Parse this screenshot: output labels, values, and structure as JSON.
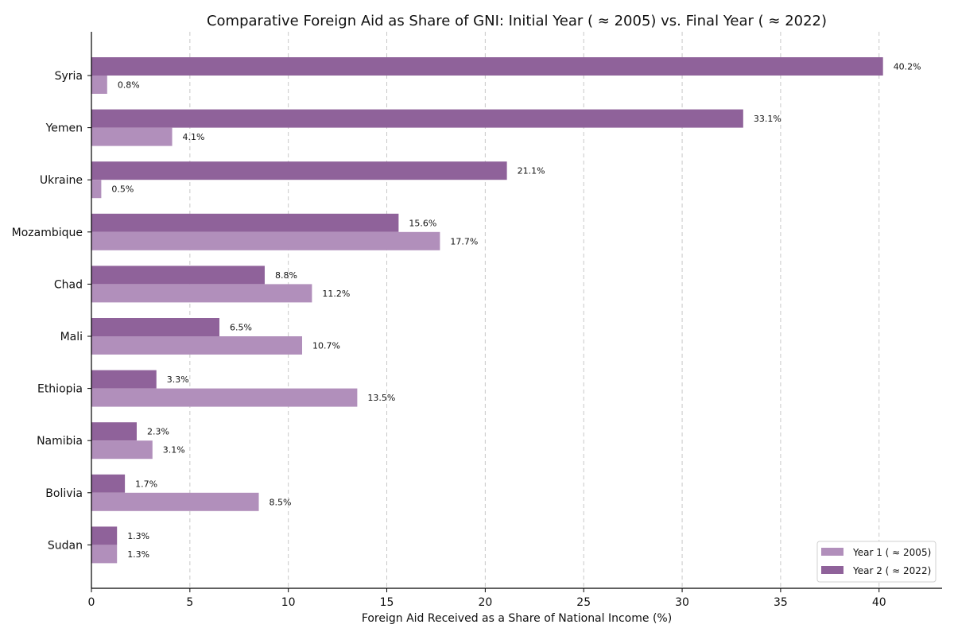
{
  "chart_data": {
    "type": "bar",
    "orientation": "horizontal",
    "title": "Comparative Foreign Aid as Share of GNI: Initial Year ( ≈ 2005) vs. Final Year ( ≈ 2022)",
    "xlabel": "Foreign Aid Received as a Share of National Income (%)",
    "ylabel": "",
    "xlim": [
      0,
      43.2
    ],
    "xticks": [
      0,
      5,
      10,
      15,
      20,
      25,
      30,
      35,
      40
    ],
    "grid": "x-dashed",
    "legend_position": "bottom-right",
    "categories": [
      "Syria",
      "Yemen",
      "Ukraine",
      "Mozambique",
      "Chad",
      "Mali",
      "Ethiopia",
      "Namibia",
      "Bolivia",
      "Sudan"
    ],
    "series": [
      {
        "name": "Year 1 ( ≈ 2005)",
        "color": "#b18fbb",
        "values": [
          0.8,
          4.1,
          0.5,
          17.7,
          11.2,
          10.7,
          13.5,
          3.1,
          8.5,
          1.3
        ],
        "labels": [
          "0.8%",
          "4.1%",
          "0.5%",
          "17.7%",
          "11.2%",
          "10.7%",
          "13.5%",
          "3.1%",
          "8.5%",
          "1.3%"
        ]
      },
      {
        "name": "Year 2 ( ≈ 2022)",
        "color": "#8f629a",
        "values": [
          40.2,
          33.1,
          21.1,
          15.6,
          8.8,
          6.5,
          3.3,
          2.3,
          1.7,
          1.3
        ],
        "labels": [
          "40.2%",
          "33.1%",
          "21.1%",
          "15.6%",
          "8.8%",
          "6.5%",
          "3.3%",
          "2.3%",
          "1.7%",
          "1.3%"
        ]
      }
    ]
  }
}
